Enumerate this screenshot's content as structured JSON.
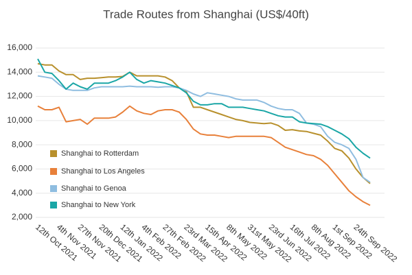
{
  "chart_data": {
    "type": "line",
    "title": "Trade Routes from Shanghai (US$/40ft)",
    "categories": [
      "12th Oct 2021",
      null,
      null,
      "4th Nov 2021",
      null,
      null,
      "27th Nov 2021",
      null,
      null,
      "20th Dec 2021",
      null,
      null,
      "12th Jan 2022",
      null,
      null,
      "4th Feb 2022",
      null,
      null,
      "27th Feb 2022",
      null,
      null,
      "23rd Mar 2022",
      null,
      null,
      "15th Apr 2022",
      null,
      null,
      "8th May 2022",
      null,
      null,
      "31st May 2022",
      null,
      null,
      "23rd Jun 2022",
      null,
      null,
      "16th Jul 2022",
      null,
      null,
      "8th Aug 2022",
      null,
      null,
      "1st Sep 2022",
      null,
      null,
      "24th Sep 2022",
      null,
      null
    ],
    "series": [
      {
        "name": "Shanghai to Rotterdam",
        "color": "#b8902c",
        "values": [
          14700,
          14600,
          14600,
          14100,
          13800,
          13800,
          13400,
          13500,
          13500,
          13550,
          13600,
          13600,
          13650,
          14000,
          13700,
          13700,
          13700,
          13700,
          13600,
          13300,
          12700,
          12400,
          11100,
          11100,
          10900,
          10700,
          10500,
          10300,
          10100,
          10000,
          9850,
          9800,
          9750,
          9800,
          9600,
          9200,
          9250,
          9150,
          9100,
          8950,
          8800,
          8300,
          7700,
          7500,
          6900,
          6000,
          5300,
          4800
        ]
      },
      {
        "name": "Shanghai to Los Angeles",
        "color": "#e8803a",
        "values": [
          11200,
          10900,
          10900,
          11100,
          9900,
          10000,
          10100,
          9700,
          10200,
          10200,
          10200,
          10300,
          10700,
          11200,
          10800,
          10600,
          10500,
          10800,
          10900,
          10900,
          10700,
          10100,
          9300,
          8900,
          8800,
          8800,
          8700,
          8600,
          8700,
          8700,
          8700,
          8700,
          8700,
          8600,
          8200,
          7800,
          7600,
          7400,
          7200,
          7100,
          6800,
          6300,
          5600,
          4900,
          4200,
          3700,
          3300,
          3000
        ]
      },
      {
        "name": "Shanghai to Genoa",
        "color": "#8fbde0",
        "values": [
          13700,
          13600,
          13500,
          13000,
          12600,
          12500,
          12500,
          12500,
          12700,
          12800,
          12800,
          12800,
          12800,
          12850,
          12800,
          12800,
          12800,
          12750,
          12800,
          12800,
          12700,
          12500,
          12200,
          12000,
          12300,
          12200,
          12100,
          12000,
          11800,
          11700,
          11700,
          11700,
          11500,
          11200,
          11000,
          10900,
          10900,
          10600,
          9800,
          9700,
          9500,
          8700,
          8200,
          8000,
          7700,
          6800,
          5300,
          4900
        ]
      },
      {
        "name": "Shanghai to New York",
        "color": "#1aa6a6",
        "values": [
          15100,
          14000,
          13900,
          13300,
          12600,
          13100,
          12800,
          12600,
          13100,
          13100,
          13100,
          13300,
          13600,
          14000,
          13400,
          13100,
          13300,
          13200,
          13100,
          12900,
          12700,
          12300,
          11600,
          11300,
          11300,
          11400,
          11400,
          11100,
          11100,
          11100,
          11000,
          10900,
          10800,
          10600,
          10400,
          10300,
          10300,
          9900,
          9800,
          9750,
          9700,
          9500,
          9200,
          8900,
          8500,
          7800,
          7300,
          6900
        ]
      }
    ],
    "ylim": [
      2000,
      16000
    ],
    "yticks": [
      {
        "value": 2000,
        "label": "2,000"
      },
      {
        "value": 4000,
        "label": "4,000"
      },
      {
        "value": 6000,
        "label": "6,000"
      },
      {
        "value": 8000,
        "label": "8,000"
      },
      {
        "value": 10000,
        "label": "10,000"
      },
      {
        "value": 12000,
        "label": "12,000"
      },
      {
        "value": 14000,
        "label": "14,000"
      },
      {
        "value": 16000,
        "label": "16,000"
      }
    ],
    "grid": true,
    "legend": "left"
  }
}
